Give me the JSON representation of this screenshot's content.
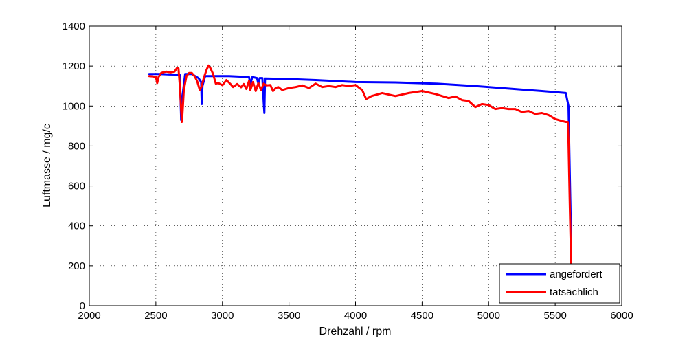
{
  "chart_data": {
    "type": "line",
    "title": "",
    "xlabel": "Drehzahl / rpm",
    "ylabel": "Luftmasse / mg/c",
    "xlim": [
      2000,
      6000
    ],
    "ylim": [
      0,
      1400
    ],
    "xticks": [
      2000,
      2500,
      3000,
      3500,
      4000,
      4500,
      5000,
      5500,
      6000
    ],
    "yticks": [
      0,
      200,
      400,
      600,
      800,
      1000,
      1200,
      1400
    ],
    "grid": true,
    "grid_style": "dotted",
    "legend_position": "bottom-right",
    "series": [
      {
        "name": "angefordert",
        "color": "#0000ff",
        "points": [
          [
            2450,
            1160
          ],
          [
            2530,
            1160
          ],
          [
            2600,
            1158
          ],
          [
            2660,
            1157
          ],
          [
            2680,
            1155
          ],
          [
            2690,
            930
          ],
          [
            2700,
            1050
          ],
          [
            2720,
            1160
          ],
          [
            2770,
            1160
          ],
          [
            2820,
            1140
          ],
          [
            2840,
            1120
          ],
          [
            2845,
            1010
          ],
          [
            2850,
            1100
          ],
          [
            2870,
            1150
          ],
          [
            2950,
            1150
          ],
          [
            3050,
            1150
          ],
          [
            3200,
            1145
          ],
          [
            3210,
            1110
          ],
          [
            3225,
            1145
          ],
          [
            3260,
            1140
          ],
          [
            3270,
            1110
          ],
          [
            3280,
            1140
          ],
          [
            3300,
            1140
          ],
          [
            3310,
            1020
          ],
          [
            3315,
            965
          ],
          [
            3320,
            1138
          ],
          [
            3500,
            1135
          ],
          [
            3700,
            1130
          ],
          [
            4000,
            1120
          ],
          [
            4300,
            1118
          ],
          [
            4600,
            1112
          ],
          [
            4900,
            1100
          ],
          [
            5200,
            1085
          ],
          [
            5400,
            1075
          ],
          [
            5580,
            1065
          ],
          [
            5600,
            1000
          ],
          [
            5620,
            300
          ]
        ]
      },
      {
        "name": "tatsächlich",
        "color": "#ff0000",
        "points": [
          [
            2450,
            1150
          ],
          [
            2480,
            1148
          ],
          [
            2500,
            1145
          ],
          [
            2510,
            1115
          ],
          [
            2520,
            1145
          ],
          [
            2540,
            1165
          ],
          [
            2560,
            1170
          ],
          [
            2580,
            1172
          ],
          [
            2610,
            1168
          ],
          [
            2640,
            1172
          ],
          [
            2660,
            1192
          ],
          [
            2670,
            1188
          ],
          [
            2680,
            1100
          ],
          [
            2695,
            920
          ],
          [
            2700,
            960
          ],
          [
            2710,
            1080
          ],
          [
            2730,
            1150
          ],
          [
            2750,
            1165
          ],
          [
            2770,
            1165
          ],
          [
            2790,
            1150
          ],
          [
            2810,
            1125
          ],
          [
            2830,
            1080
          ],
          [
            2845,
            1100
          ],
          [
            2860,
            1140
          ],
          [
            2880,
            1180
          ],
          [
            2895,
            1203
          ],
          [
            2910,
            1190
          ],
          [
            2930,
            1160
          ],
          [
            2950,
            1112
          ],
          [
            2970,
            1115
          ],
          [
            3000,
            1104
          ],
          [
            3030,
            1130
          ],
          [
            3060,
            1110
          ],
          [
            3080,
            1095
          ],
          [
            3110,
            1110
          ],
          [
            3140,
            1094
          ],
          [
            3160,
            1110
          ],
          [
            3180,
            1085
          ],
          [
            3200,
            1125
          ],
          [
            3210,
            1080
          ],
          [
            3230,
            1120
          ],
          [
            3250,
            1075
          ],
          [
            3270,
            1115
          ],
          [
            3290,
            1080
          ],
          [
            3310,
            1112
          ],
          [
            3330,
            1103
          ],
          [
            3360,
            1105
          ],
          [
            3380,
            1075
          ],
          [
            3400,
            1090
          ],
          [
            3420,
            1095
          ],
          [
            3450,
            1080
          ],
          [
            3500,
            1090
          ],
          [
            3550,
            1095
          ],
          [
            3600,
            1103
          ],
          [
            3650,
            1090
          ],
          [
            3700,
            1112
          ],
          [
            3750,
            1095
          ],
          [
            3800,
            1100
          ],
          [
            3850,
            1095
          ],
          [
            3900,
            1105
          ],
          [
            3950,
            1100
          ],
          [
            4000,
            1105
          ],
          [
            4050,
            1080
          ],
          [
            4080,
            1035
          ],
          [
            4120,
            1050
          ],
          [
            4200,
            1065
          ],
          [
            4300,
            1050
          ],
          [
            4400,
            1065
          ],
          [
            4500,
            1075
          ],
          [
            4600,
            1060
          ],
          [
            4700,
            1040
          ],
          [
            4750,
            1048
          ],
          [
            4800,
            1030
          ],
          [
            4850,
            1025
          ],
          [
            4900,
            995
          ],
          [
            4950,
            1010
          ],
          [
            5000,
            1005
          ],
          [
            5050,
            985
          ],
          [
            5100,
            990
          ],
          [
            5150,
            985
          ],
          [
            5200,
            985
          ],
          [
            5250,
            970
          ],
          [
            5300,
            975
          ],
          [
            5350,
            960
          ],
          [
            5400,
            965
          ],
          [
            5450,
            955
          ],
          [
            5500,
            935
          ],
          [
            5550,
            925
          ],
          [
            5580,
            920
          ],
          [
            5595,
            920
          ],
          [
            5600,
            820
          ],
          [
            5610,
            500
          ],
          [
            5620,
            200
          ]
        ]
      }
    ]
  }
}
